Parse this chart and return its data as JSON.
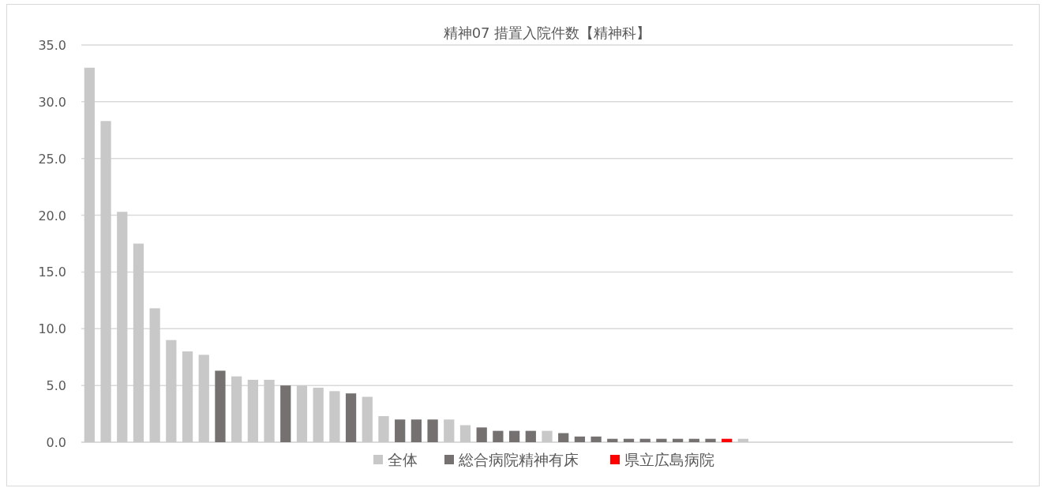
{
  "chart_data": {
    "type": "bar",
    "title": "精神07 措置入院件数【精神科】",
    "grid": "y",
    "legend": "bottom",
    "categories": [
      null,
      null,
      null,
      null,
      null,
      null,
      null,
      null,
      null,
      null,
      null,
      null,
      null,
      null,
      null,
      null,
      null,
      null,
      null,
      null,
      null,
      null,
      null,
      null,
      null,
      null,
      null,
      null,
      null,
      null,
      null,
      null,
      null,
      null,
      null,
      null,
      null,
      null,
      null,
      null,
      null,
      null,
      null,
      null,
      null,
      null,
      null,
      null,
      null,
      null,
      null,
      null,
      null,
      null,
      null,
      null,
      null
    ],
    "ylim": [
      0,
      35
    ],
    "yticks": [
      {
        "value": 0,
        "label": "0.0"
      },
      {
        "value": 5,
        "label": "5.0"
      },
      {
        "value": 10,
        "label": "10.0"
      },
      {
        "value": 15,
        "label": "15.0"
      },
      {
        "value": 20,
        "label": "20.0"
      },
      {
        "value": 25,
        "label": "25.0"
      },
      {
        "value": 30,
        "label": "30.0"
      },
      {
        "value": 35,
        "label": "35.0"
      }
    ],
    "series": [
      {
        "name": "全体",
        "color": "#c8c8c8",
        "values": [
          33.0,
          28.3,
          20.3,
          17.5,
          11.8,
          9.0,
          8.0,
          7.7,
          null,
          5.8,
          5.5,
          5.5,
          null,
          5.0,
          4.8,
          4.5,
          null,
          4.0,
          2.3,
          null,
          null,
          null,
          2.0,
          1.5,
          null,
          null,
          null,
          null,
          1.0,
          null,
          null,
          null,
          null,
          null,
          null,
          null,
          null,
          null,
          null,
          null,
          0.3,
          null,
          null,
          null,
          null,
          null,
          null,
          null,
          null,
          null,
          null,
          null,
          null,
          null,
          null,
          null,
          null
        ]
      },
      {
        "name": "総合病院精神有床",
        "color": "#767171",
        "values": [
          null,
          null,
          null,
          null,
          null,
          null,
          null,
          null,
          6.3,
          null,
          null,
          null,
          5.0,
          null,
          null,
          null,
          4.3,
          null,
          null,
          2.0,
          2.0,
          2.0,
          null,
          null,
          1.3,
          1.0,
          1.0,
          1.0,
          null,
          0.8,
          0.5,
          0.5,
          0.3,
          0.3,
          0.3,
          0.3,
          0.3,
          0.3,
          0.3,
          null,
          null,
          null,
          null,
          null,
          null,
          null,
          null,
          null,
          null,
          null,
          null,
          null,
          null,
          null,
          null,
          null,
          null
        ]
      },
      {
        "name": "県立広島病院",
        "color": "#ff0000",
        "values": [
          null,
          null,
          null,
          null,
          null,
          null,
          null,
          null,
          null,
          null,
          null,
          null,
          null,
          null,
          null,
          null,
          null,
          null,
          null,
          null,
          null,
          null,
          null,
          null,
          null,
          null,
          null,
          null,
          null,
          null,
          null,
          null,
          null,
          null,
          null,
          null,
          null,
          null,
          null,
          0.3,
          null,
          null,
          null,
          null,
          null,
          null,
          null,
          null,
          null,
          null,
          null,
          null,
          null,
          null,
          null,
          null,
          null
        ]
      }
    ]
  }
}
